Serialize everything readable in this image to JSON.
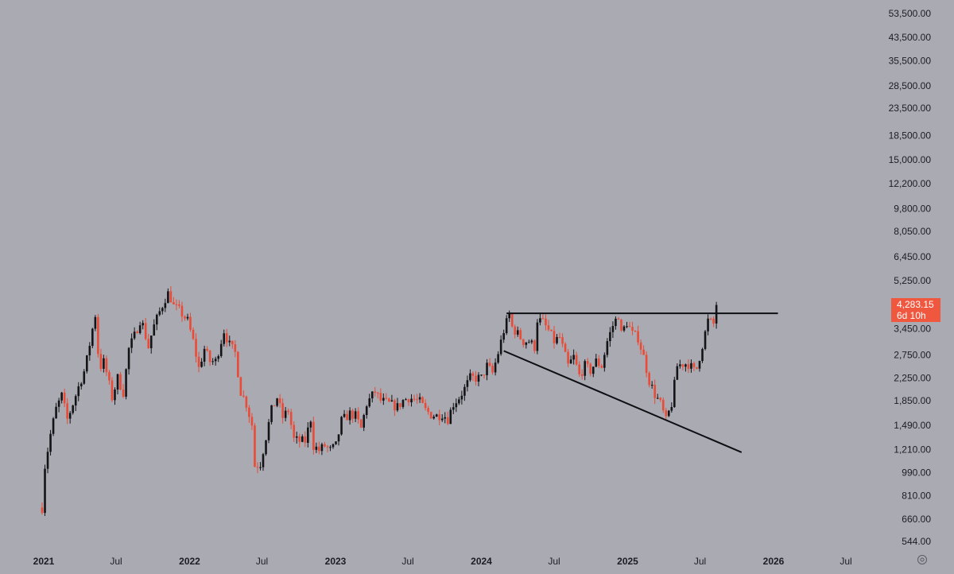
{
  "chart_data": {
    "type": "candlestick",
    "scale": "log",
    "grid": false,
    "legend": "none",
    "ylim": [
      490,
      60000
    ],
    "xlim": [
      "2020-12-15",
      "2026-09-15"
    ],
    "y_ticks": [
      "53,500.00",
      "43,500.00",
      "35,500.00",
      "28,500.00",
      "23,500.00",
      "18,500.00",
      "15,000.00",
      "12,200.00",
      "9,800.00",
      "8,050.00",
      "6,450.00",
      "5,250.00",
      "3,450.00",
      "2,750.00",
      "2,250.00",
      "1,850.00",
      "1,490.00",
      "1,210.00",
      "990.00",
      "810.00",
      "660.00",
      "544.00"
    ],
    "y_tick_values": [
      53500,
      43500,
      35500,
      28500,
      23500,
      18500,
      15000,
      12200,
      9800,
      8050,
      6450,
      5250,
      3450,
      2750,
      2250,
      1850,
      1490,
      1210,
      990,
      810,
      660,
      544
    ],
    "x_ticks": [
      {
        "label": "2021",
        "date": "2021-01-01",
        "year": true
      },
      {
        "label": "Jul",
        "date": "2021-07-01",
        "year": false
      },
      {
        "label": "2022",
        "date": "2022-01-01",
        "year": true
      },
      {
        "label": "Jul",
        "date": "2022-07-01",
        "year": false
      },
      {
        "label": "2023",
        "date": "2023-01-01",
        "year": true
      },
      {
        "label": "Jul",
        "date": "2023-07-01",
        "year": false
      },
      {
        "label": "2024",
        "date": "2024-01-01",
        "year": true
      },
      {
        "label": "Jul",
        "date": "2024-07-01",
        "year": false
      },
      {
        "label": "2025",
        "date": "2025-01-01",
        "year": true
      },
      {
        "label": "Jul",
        "date": "2025-07-01",
        "year": false
      },
      {
        "label": "2026",
        "date": "2026-01-01",
        "year": true
      },
      {
        "label": "Jul",
        "date": "2026-07-01",
        "year": false
      }
    ],
    "series_close": [
      [
        "2020-12-28",
        730
      ],
      [
        "2021-01-04",
        1050
      ],
      [
        "2021-01-18",
        1380
      ],
      [
        "2021-02-01",
        1720
      ],
      [
        "2021-02-15",
        1930
      ],
      [
        "2021-03-01",
        1570
      ],
      [
        "2021-03-15",
        1800
      ],
      [
        "2021-04-01",
        2150
      ],
      [
        "2021-04-15",
        2450
      ],
      [
        "2021-05-03",
        3450
      ],
      [
        "2021-05-10",
        3900
      ],
      [
        "2021-05-20",
        2450
      ],
      [
        "2021-06-01",
        2600
      ],
      [
        "2021-06-21",
        1900
      ],
      [
        "2021-07-05",
        2250
      ],
      [
        "2021-07-19",
        1990
      ],
      [
        "2021-08-02",
        2900
      ],
      [
        "2021-08-16",
        3250
      ],
      [
        "2021-09-01",
        3800
      ],
      [
        "2021-09-20",
        2950
      ],
      [
        "2021-10-01",
        3450
      ],
      [
        "2021-10-15",
        3900
      ],
      [
        "2021-11-01",
        4500
      ],
      [
        "2021-11-10",
        4750
      ],
      [
        "2021-11-22",
        4200
      ],
      [
        "2021-12-06",
        4050
      ],
      [
        "2021-12-27",
        3700
      ],
      [
        "2022-01-10",
        3100
      ],
      [
        "2022-01-24",
        2450
      ],
      [
        "2022-02-07",
        2900
      ],
      [
        "2022-02-21",
        2600
      ],
      [
        "2022-03-07",
        2600
      ],
      [
        "2022-03-28",
        3400
      ],
      [
        "2022-04-11",
        3000
      ],
      [
        "2022-04-25",
        2800
      ],
      [
        "2022-05-09",
        2000
      ],
      [
        "2022-05-23",
        1800
      ],
      [
        "2022-06-06",
        1500
      ],
      [
        "2022-06-13",
        1050
      ],
      [
        "2022-06-27",
        1070
      ],
      [
        "2022-07-11",
        1350
      ],
      [
        "2022-07-25",
        1700
      ],
      [
        "2022-08-08",
        1900
      ],
      [
        "2022-08-22",
        1600
      ],
      [
        "2022-09-05",
        1700
      ],
      [
        "2022-09-19",
        1320
      ],
      [
        "2022-10-03",
        1300
      ],
      [
        "2022-10-17",
        1300
      ],
      [
        "2022-10-31",
        1580
      ],
      [
        "2022-11-07",
        1250
      ],
      [
        "2022-11-21",
        1200
      ],
      [
        "2022-12-05",
        1250
      ],
      [
        "2022-12-19",
        1200
      ],
      [
        "2023-01-02",
        1250
      ],
      [
        "2023-01-16",
        1550
      ],
      [
        "2023-02-06",
        1650
      ],
      [
        "2023-02-20",
        1620
      ],
      [
        "2023-03-06",
        1450
      ],
      [
        "2023-03-20",
        1800
      ],
      [
        "2023-04-10",
        2000
      ],
      [
        "2023-04-24",
        1850
      ],
      [
        "2023-05-15",
        1800
      ],
      [
        "2023-06-05",
        1750
      ],
      [
        "2023-06-19",
        1850
      ],
      [
        "2023-07-03",
        1900
      ],
      [
        "2023-07-17",
        1870
      ],
      [
        "2023-07-31",
        1830
      ],
      [
        "2023-08-14",
        1700
      ],
      [
        "2023-08-28",
        1640
      ],
      [
        "2023-09-11",
        1620
      ],
      [
        "2023-09-25",
        1650
      ],
      [
        "2023-10-09",
        1580
      ],
      [
        "2023-10-23",
        1800
      ],
      [
        "2023-11-06",
        1900
      ],
      [
        "2023-11-20",
        2050
      ],
      [
        "2023-12-04",
        2250
      ],
      [
        "2023-12-18",
        2250
      ],
      [
        "2024-01-01",
        2250
      ],
      [
        "2024-01-15",
        2500
      ],
      [
        "2024-01-29",
        2350
      ],
      [
        "2024-02-12",
        2800
      ],
      [
        "2024-02-26",
        3400
      ],
      [
        "2024-03-11",
        3900
      ],
      [
        "2024-03-18",
        3500
      ],
      [
        "2024-04-01",
        3300
      ],
      [
        "2024-04-15",
        3100
      ],
      [
        "2024-04-29",
        3100
      ],
      [
        "2024-05-13",
        2950
      ],
      [
        "2024-05-20",
        3750
      ],
      [
        "2024-06-03",
        3650
      ],
      [
        "2024-06-17",
        3400
      ],
      [
        "2024-07-01",
        3100
      ],
      [
        "2024-07-15",
        3200
      ],
      [
        "2024-08-05",
        2500
      ],
      [
        "2024-08-19",
        2700
      ],
      [
        "2024-09-02",
        2300
      ],
      [
        "2024-09-16",
        2500
      ],
      [
        "2024-09-30",
        2400
      ],
      [
        "2024-10-14",
        2600
      ],
      [
        "2024-10-28",
        2500
      ],
      [
        "2024-11-11",
        3100
      ],
      [
        "2024-11-25",
        3550
      ],
      [
        "2024-12-09",
        3900
      ],
      [
        "2024-12-16",
        3300
      ],
      [
        "2024-12-30",
        3650
      ],
      [
        "2025-01-13",
        3300
      ],
      [
        "2025-01-27",
        3200
      ],
      [
        "2025-02-10",
        2700
      ],
      [
        "2025-02-24",
        2200
      ],
      [
        "2025-03-10",
        1950
      ],
      [
        "2025-03-24",
        1800
      ],
      [
        "2025-04-07",
        1550
      ],
      [
        "2025-04-21",
        1800
      ],
      [
        "2025-05-05",
        2500
      ],
      [
        "2025-05-19",
        2550
      ],
      [
        "2025-06-02",
        2550
      ],
      [
        "2025-06-16",
        2400
      ],
      [
        "2025-06-23",
        2450
      ],
      [
        "2025-07-07",
        3000
      ],
      [
        "2025-07-21",
        3700
      ],
      [
        "2025-08-04",
        3600
      ],
      [
        "2025-08-11",
        4283.15
      ]
    ],
    "last_price": "4,283.15",
    "countdown": "6d 10h",
    "trendlines": [
      {
        "name": "resistance",
        "from": [
          "2024-03-04",
          3950
        ],
        "to": [
          "2026-01-12",
          3950
        ]
      },
      {
        "name": "support",
        "from": [
          "2024-02-26",
          2850
        ],
        "to": [
          "2025-10-13",
          1180
        ]
      }
    ],
    "colors": {
      "background": "#a9aab2",
      "up": "#141417",
      "down": "#ea4a36",
      "badge": "#f0573f",
      "line": "#0e0f12"
    }
  },
  "icons": {
    "settings": "settings-icon"
  }
}
